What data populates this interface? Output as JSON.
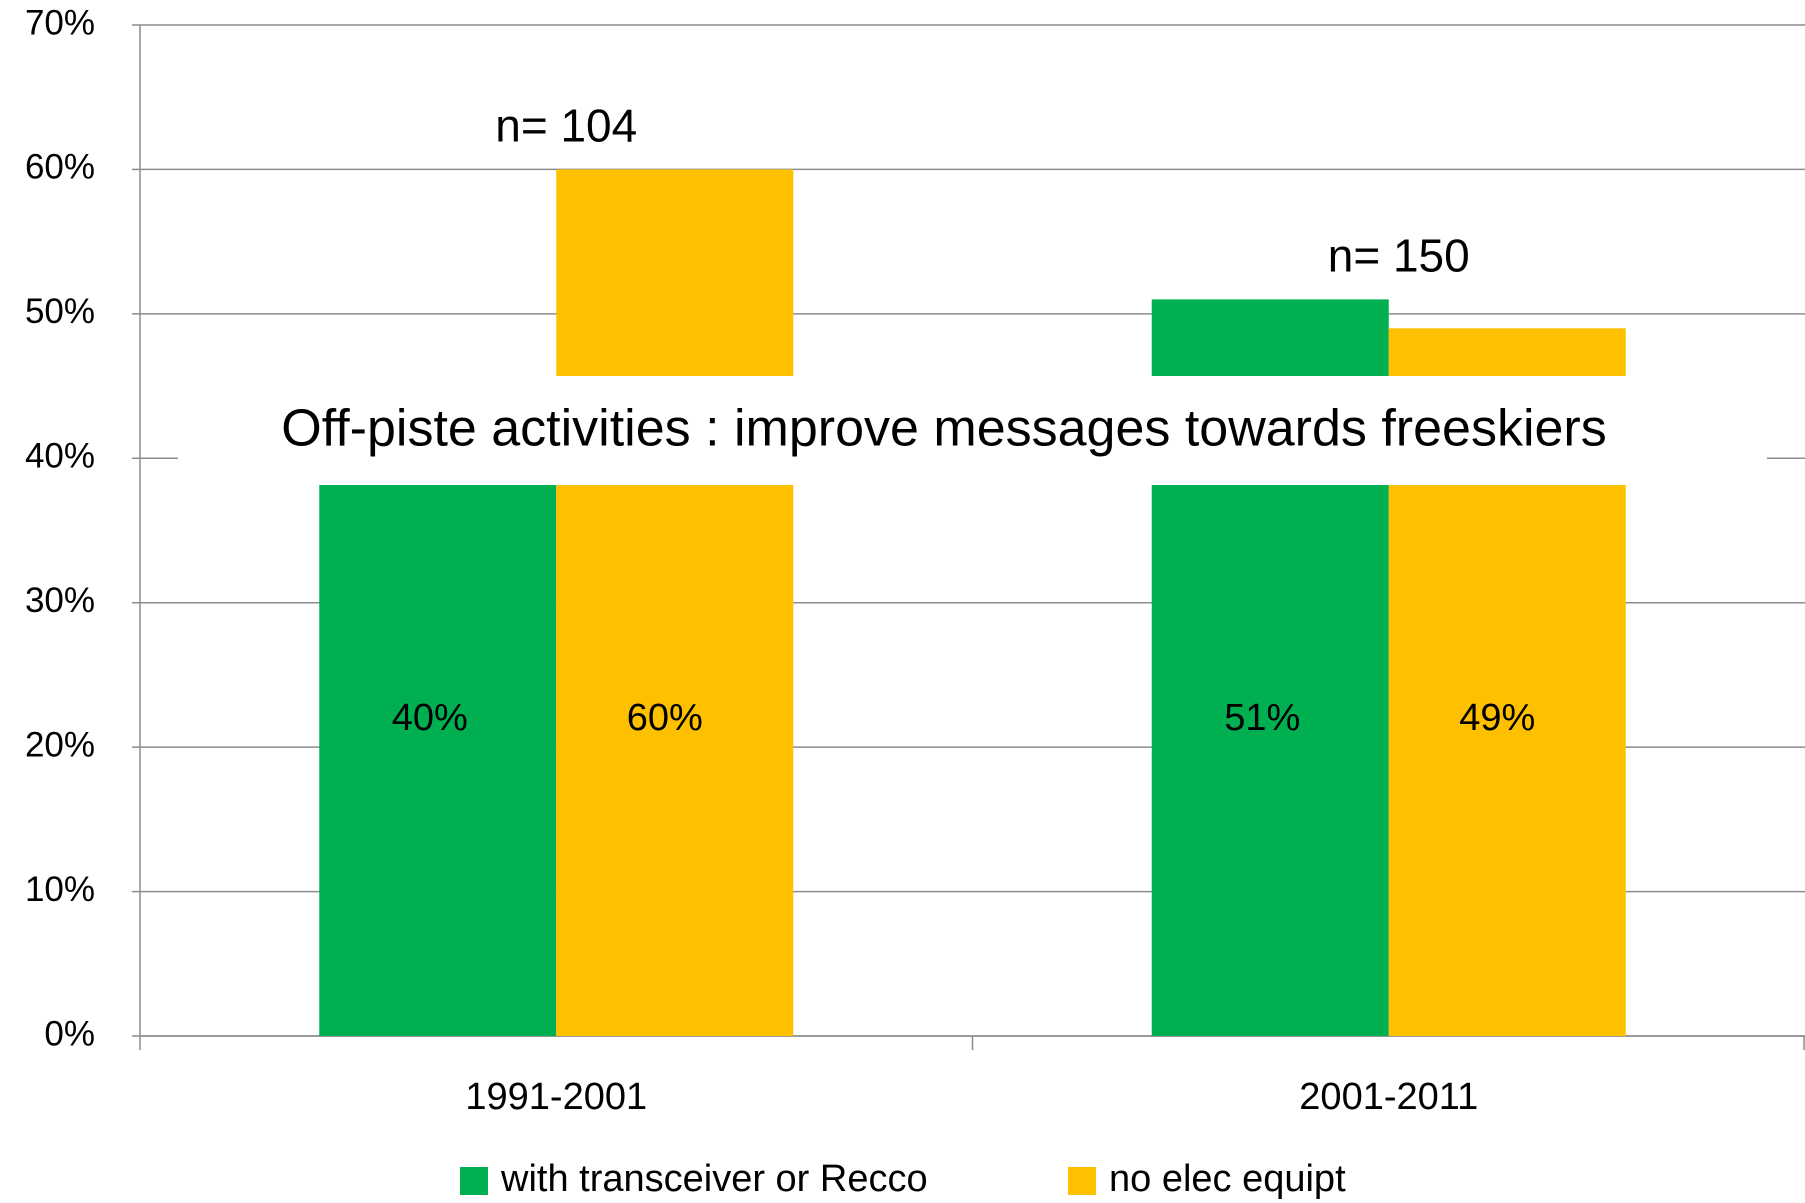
{
  "chart_data": {
    "type": "bar",
    "title": "Off-piste activities : improve messages towards freeskiers",
    "categories": [
      "1991-2001",
      "2001-2011"
    ],
    "series": [
      {
        "name": "with transceiver or Recco",
        "color": "#00b050",
        "values": [
          40,
          51
        ],
        "value_labels": [
          "40%",
          "51%"
        ]
      },
      {
        "name": "no elec equipt",
        "color": "#ffc000",
        "values": [
          60,
          49
        ],
        "value_labels": [
          "60%",
          "49%"
        ]
      }
    ],
    "annotations": [
      "n= 104",
      "n= 150"
    ],
    "ylim": [
      0,
      70
    ],
    "yticks": [
      {
        "value": 0,
        "label": "0%"
      },
      {
        "value": 10,
        "label": "10%"
      },
      {
        "value": 20,
        "label": "20%"
      },
      {
        "value": 30,
        "label": "30%"
      },
      {
        "value": 40,
        "label": "40%"
      },
      {
        "value": 50,
        "label": "50%"
      },
      {
        "value": 60,
        "label": "60%"
      },
      {
        "value": 70,
        "label": "70%"
      }
    ],
    "grid": true,
    "legend": "bottom"
  }
}
